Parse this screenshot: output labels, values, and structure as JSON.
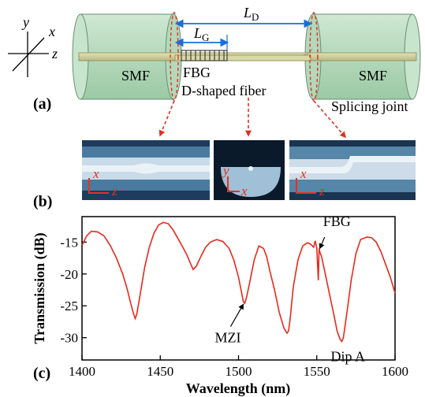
{
  "panels": {
    "a": "(a)",
    "b": "(b)",
    "c": "(c)"
  },
  "schematic": {
    "left_fiber": "SMF",
    "right_fiber": "SMF",
    "grating": "FBG",
    "middle_fiber": "D-shaped fiber",
    "joint": "Splicing joint",
    "length_total": "L",
    "length_total_sub": "D",
    "length_grating": "L",
    "length_grating_sub": "G",
    "axes": {
      "x": "x",
      "y": "y",
      "z": "z"
    },
    "colors": {
      "cylinder": "#b9dcc2",
      "fiber": "#cfcf9a",
      "arrow": "#e03020",
      "dim": "#1a6fd6"
    }
  },
  "micrographs": {
    "left_axes": {
      "x": "x",
      "z": "z"
    },
    "center_axes": {
      "x": "x",
      "y": "y"
    },
    "right_axes": {
      "x": "x",
      "z": "z"
    }
  },
  "chart_data": {
    "type": "line",
    "xlabel": "Wavelength (nm)",
    "ylabel": "Transmission (dB)",
    "xlim": [
      1400,
      1600
    ],
    "ylim": [
      -33.5,
      -11
    ],
    "xticks": [
      1400,
      1450,
      1500,
      1550,
      1600
    ],
    "yticks": [
      -15,
      -20,
      -25,
      -30
    ],
    "annotations": [
      {
        "text": "FBG",
        "x": 1551,
        "y": -16.2
      },
      {
        "text": "MZI",
        "x": 1504,
        "y": -24.3
      },
      {
        "text": "Dip A",
        "x": 1566,
        "y": -30.6
      }
    ],
    "series": [
      {
        "color": "#e8291c",
        "x": [
          1400,
          1403,
          1406,
          1410,
          1414,
          1418,
          1422,
          1426,
          1429,
          1431,
          1433,
          1434,
          1435,
          1437,
          1440,
          1443,
          1446,
          1449,
          1452,
          1455,
          1458,
          1461,
          1464,
          1467,
          1469,
          1471,
          1473,
          1476,
          1479,
          1482,
          1486,
          1490,
          1494,
          1497,
          1500,
          1502,
          1503,
          1504,
          1505,
          1507,
          1510,
          1513,
          1516,
          1518,
          1520,
          1523,
          1526,
          1529,
          1531,
          1532,
          1533,
          1535,
          1538,
          1541,
          1544,
          1546,
          1548,
          1549,
          1550,
          1551,
          1551.5,
          1552,
          1553,
          1555,
          1558,
          1561,
          1563,
          1565,
          1566,
          1567,
          1569,
          1572,
          1575,
          1578,
          1582,
          1585,
          1588,
          1591,
          1594,
          1597,
          1600
        ],
        "y": [
          -15.5,
          -14.0,
          -13.3,
          -13.4,
          -14.0,
          -15.5,
          -17.5,
          -20.0,
          -22.5,
          -24.5,
          -26.3,
          -27.0,
          -26.3,
          -23.5,
          -19.0,
          -15.8,
          -13.6,
          -12.3,
          -11.9,
          -12.1,
          -13.0,
          -14.3,
          -15.6,
          -17.0,
          -18.2,
          -19.3,
          -18.8,
          -17.2,
          -15.8,
          -15.0,
          -14.6,
          -14.9,
          -16.0,
          -17.8,
          -20.5,
          -23.0,
          -24.3,
          -24.6,
          -23.8,
          -21.5,
          -17.8,
          -15.6,
          -16.0,
          -17.3,
          -19.5,
          -22.5,
          -26.0,
          -28.5,
          -29.3,
          -28.9,
          -27.0,
          -22.0,
          -17.8,
          -15.6,
          -15.1,
          -15.3,
          -15.8,
          -14.8,
          -16.0,
          -21.0,
          -16.0,
          -16.6,
          -17.2,
          -19.5,
          -23.0,
          -26.5,
          -29.0,
          -30.3,
          -30.6,
          -30.0,
          -26.5,
          -21.0,
          -16.8,
          -14.6,
          -14.2,
          -14.3,
          -15.0,
          -16.5,
          -18.5,
          -20.5,
          -23.0
        ]
      }
    ]
  }
}
